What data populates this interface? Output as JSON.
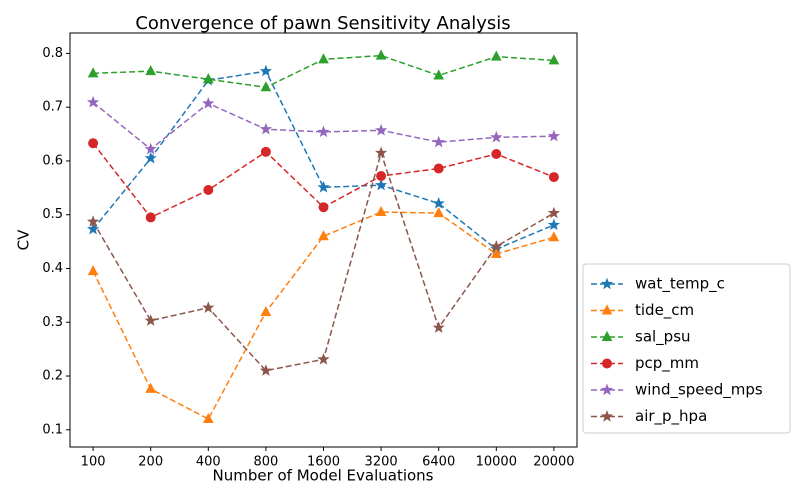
{
  "chart_data": {
    "type": "line",
    "title": "Convergence of pawn Sensitivity Analysis",
    "x_label": "Number of Model Evaluations",
    "y_label": "CV",
    "categories": [
      "100",
      "200",
      "400",
      "800",
      "1600",
      "3200",
      "6400",
      "10000",
      "20000"
    ],
    "ylim": [
      0.068,
      0.838
    ],
    "yticks": [
      0.1,
      0.2,
      0.3,
      0.4,
      0.5,
      0.6,
      0.7,
      0.8
    ],
    "legend": "lower right outside",
    "series": [
      {
        "name": "wat_temp_c",
        "color": "#1f77b4",
        "marker": "star",
        "values": [
          0.473,
          0.605,
          0.75,
          0.767,
          0.551,
          0.555,
          0.521,
          0.436,
          0.481
        ]
      },
      {
        "name": "tide_cm",
        "color": "#ff7f0e",
        "marker": "triangle",
        "values": [
          0.395,
          0.176,
          0.12,
          0.319,
          0.46,
          0.505,
          0.503,
          0.427,
          0.458
        ]
      },
      {
        "name": "sal_psu",
        "color": "#2ca02c",
        "marker": "triangle",
        "values": [
          0.763,
          0.767,
          0.752,
          0.737,
          0.789,
          0.796,
          0.759,
          0.794,
          0.787
        ]
      },
      {
        "name": "pcp_mm",
        "color": "#d62728",
        "marker": "circle",
        "values": [
          0.633,
          0.495,
          0.546,
          0.617,
          0.514,
          0.572,
          0.586,
          0.613,
          0.57
        ]
      },
      {
        "name": "wind_speed_mps",
        "color": "#9467bd",
        "marker": "star",
        "values": [
          0.709,
          0.622,
          0.707,
          0.659,
          0.654,
          0.657,
          0.635,
          0.644,
          0.646
        ]
      },
      {
        "name": "air_p_hpa",
        "color": "#8c564b",
        "marker": "star",
        "values": [
          0.487,
          0.303,
          0.327,
          0.21,
          0.231,
          0.615,
          0.29,
          0.441,
          0.503
        ]
      }
    ]
  }
}
